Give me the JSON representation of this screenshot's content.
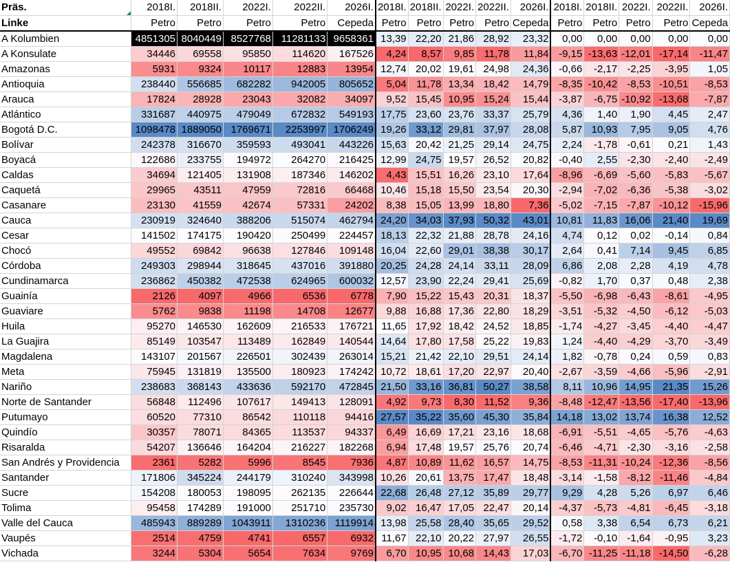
{
  "sheet": {
    "corner_label": "Präs.",
    "row2_label": "Linke",
    "elections": [
      "2018I.",
      "2018II.",
      "2022I.",
      "2022II.",
      "2026I."
    ],
    "candidates": [
      "Petro",
      "Petro",
      "Petro",
      "Petro",
      "Cepeda"
    ],
    "colors": {
      "red": "#f8696b",
      "white": "#fcfcff",
      "blue": "#5a8ac6"
    },
    "rows": [
      {
        "name": "A Kolumbien",
        "abs": [
          "4851305",
          "8040449",
          "8527768",
          "11281133",
          "9658361"
        ],
        "pct": [
          "13,39",
          "22,20",
          "21,86",
          "28,92",
          "23,32"
        ],
        "diff": [
          "0,00",
          "0,00",
          "0,00",
          "0,00",
          "0,00"
        ],
        "total": true
      },
      {
        "name": "A Konsulate",
        "abs": [
          "34446",
          "69558",
          "95850",
          "114620",
          "167526"
        ],
        "pct": [
          "4,24",
          "8,57",
          "9,85",
          "11,78",
          "11,84"
        ],
        "diff": [
          "-9,15",
          "-13,63",
          "-12,01",
          "-17,14",
          "-11,47"
        ]
      },
      {
        "name": "Amazonas",
        "abs": [
          "5931",
          "9324",
          "10117",
          "12883",
          "13954"
        ],
        "pct": [
          "12,74",
          "20,02",
          "19,61",
          "24,98",
          "24,36"
        ],
        "diff": [
          "-0,66",
          "-2,17",
          "-2,25",
          "-3,95",
          "1,05"
        ]
      },
      {
        "name": "Antioquia",
        "abs": [
          "238440",
          "556685",
          "682282",
          "942005",
          "805652"
        ],
        "pct": [
          "5,04",
          "11,78",
          "13,34",
          "18,42",
          "14,79"
        ],
        "diff": [
          "-8,35",
          "-10,42",
          "-8,53",
          "-10,51",
          "-8,53"
        ]
      },
      {
        "name": "Arauca",
        "abs": [
          "17824",
          "28928",
          "23043",
          "32082",
          "34097"
        ],
        "pct": [
          "9,52",
          "15,45",
          "10,95",
          "15,24",
          "15,44"
        ],
        "diff": [
          "-3,87",
          "-6,75",
          "-10,92",
          "-13,68",
          "-7,87"
        ]
      },
      {
        "name": "Atlántico",
        "abs": [
          "331687",
          "440975",
          "479049",
          "672832",
          "549193"
        ],
        "pct": [
          "17,75",
          "23,60",
          "23,76",
          "33,37",
          "25,79"
        ],
        "diff": [
          "4,36",
          "1,40",
          "1,90",
          "4,45",
          "2,47"
        ]
      },
      {
        "name": "Bogotá D.C.",
        "abs": [
          "1098478",
          "1889050",
          "1769671",
          "2253997",
          "1706249"
        ],
        "pct": [
          "19,26",
          "33,12",
          "29,81",
          "37,97",
          "28,08"
        ],
        "diff": [
          "5,87",
          "10,93",
          "7,95",
          "9,05",
          "4,76"
        ]
      },
      {
        "name": "Bolívar",
        "abs": [
          "242378",
          "316670",
          "359593",
          "493041",
          "443226"
        ],
        "pct": [
          "15,63",
          "20,42",
          "21,25",
          "29,14",
          "24,75"
        ],
        "diff": [
          "2,24",
          "-1,78",
          "-0,61",
          "0,21",
          "1,43"
        ]
      },
      {
        "name": "Boyacá",
        "abs": [
          "122686",
          "233755",
          "194972",
          "264270",
          "216425"
        ],
        "pct": [
          "12,99",
          "24,75",
          "19,57",
          "26,52",
          "20,82"
        ],
        "diff": [
          "-0,40",
          "2,55",
          "-2,30",
          "-2,40",
          "-2,49"
        ]
      },
      {
        "name": "Caldas",
        "abs": [
          "34694",
          "121405",
          "131908",
          "187346",
          "146202"
        ],
        "pct": [
          "4,43",
          "15,51",
          "16,26",
          "23,10",
          "17,64"
        ],
        "diff": [
          "-8,96",
          "-6,69",
          "-5,60",
          "-5,83",
          "-5,67"
        ]
      },
      {
        "name": "Caquetá",
        "abs": [
          "29965",
          "43511",
          "47959",
          "72816",
          "66468"
        ],
        "pct": [
          "10,46",
          "15,18",
          "15,50",
          "23,54",
          "20,30"
        ],
        "diff": [
          "-2,94",
          "-7,02",
          "-6,36",
          "-5,38",
          "-3,02"
        ]
      },
      {
        "name": "Casanare",
        "abs": [
          "23130",
          "41559",
          "42674",
          "57331",
          "24202"
        ],
        "pct": [
          "8,38",
          "15,05",
          "13,99",
          "18,80",
          "7,36"
        ],
        "diff": [
          "-5,02",
          "-7,15",
          "-7,87",
          "-10,12",
          "-15,96"
        ]
      },
      {
        "name": "Cauca",
        "abs": [
          "230919",
          "324640",
          "388206",
          "515074",
          "462794"
        ],
        "pct": [
          "24,20",
          "34,03",
          "37,93",
          "50,32",
          "43,01"
        ],
        "diff": [
          "10,81",
          "11,83",
          "16,06",
          "21,40",
          "19,69"
        ]
      },
      {
        "name": "Cesar",
        "abs": [
          "141502",
          "174175",
          "190420",
          "250499",
          "224457"
        ],
        "pct": [
          "18,13",
          "22,32",
          "21,88",
          "28,78",
          "24,16"
        ],
        "diff": [
          "4,74",
          "0,12",
          "0,02",
          "-0,14",
          "0,84"
        ]
      },
      {
        "name": "Chocó",
        "abs": [
          "49552",
          "69842",
          "96638",
          "127846",
          "109148"
        ],
        "pct": [
          "16,04",
          "22,60",
          "29,01",
          "38,38",
          "30,17"
        ],
        "diff": [
          "2,64",
          "0,41",
          "7,14",
          "9,45",
          "6,85"
        ]
      },
      {
        "name": "Córdoba",
        "abs": [
          "249303",
          "298944",
          "318645",
          "437016",
          "391880"
        ],
        "pct": [
          "20,25",
          "24,28",
          "24,14",
          "33,11",
          "28,09"
        ],
        "diff": [
          "6,86",
          "2,08",
          "2,28",
          "4,19",
          "4,78"
        ]
      },
      {
        "name": "Cundinamarca",
        "abs": [
          "236862",
          "450382",
          "472538",
          "624965",
          "600032"
        ],
        "pct": [
          "12,57",
          "23,90",
          "22,24",
          "29,41",
          "25,69"
        ],
        "diff": [
          "-0,82",
          "1,70",
          "0,37",
          "0,48",
          "2,38"
        ]
      },
      {
        "name": "Guainía",
        "abs": [
          "2126",
          "4097",
          "4966",
          "6536",
          "6778"
        ],
        "pct": [
          "7,90",
          "15,22",
          "15,43",
          "20,31",
          "18,37"
        ],
        "diff": [
          "-5,50",
          "-6,98",
          "-6,43",
          "-8,61",
          "-4,95"
        ]
      },
      {
        "name": "Guaviare",
        "abs": [
          "5762",
          "9838",
          "11198",
          "14708",
          "12677"
        ],
        "pct": [
          "9,88",
          "16,88",
          "17,36",
          "22,80",
          "18,29"
        ],
        "diff": [
          "-3,51",
          "-5,32",
          "-4,50",
          "-6,12",
          "-5,03"
        ]
      },
      {
        "name": "Huila",
        "abs": [
          "95270",
          "146530",
          "162609",
          "216533",
          "176721"
        ],
        "pct": [
          "11,65",
          "17,92",
          "18,42",
          "24,52",
          "18,85"
        ],
        "diff": [
          "-1,74",
          "-4,27",
          "-3,45",
          "-4,40",
          "-4,47"
        ]
      },
      {
        "name": "La Guajira",
        "abs": [
          "85149",
          "103547",
          "113489",
          "162849",
          "140544"
        ],
        "pct": [
          "14,64",
          "17,80",
          "17,58",
          "25,22",
          "19,83"
        ],
        "diff": [
          "1,24",
          "-4,40",
          "-4,29",
          "-3,70",
          "-3,49"
        ]
      },
      {
        "name": "Magdalena",
        "abs": [
          "143107",
          "201567",
          "226501",
          "302439",
          "263014"
        ],
        "pct": [
          "15,21",
          "21,42",
          "22,10",
          "29,51",
          "24,14"
        ],
        "diff": [
          "1,82",
          "-0,78",
          "0,24",
          "0,59",
          "0,83"
        ]
      },
      {
        "name": "Meta",
        "abs": [
          "75945",
          "131819",
          "135500",
          "180923",
          "174242"
        ],
        "pct": [
          "10,72",
          "18,61",
          "17,20",
          "22,97",
          "20,40"
        ],
        "diff": [
          "-2,67",
          "-3,59",
          "-4,66",
          "-5,96",
          "-2,91"
        ]
      },
      {
        "name": "Nariño",
        "abs": [
          "238683",
          "368143",
          "433636",
          "592170",
          "472845"
        ],
        "pct": [
          "21,50",
          "33,16",
          "36,81",
          "50,27",
          "38,58"
        ],
        "diff": [
          "8,11",
          "10,96",
          "14,95",
          "21,35",
          "15,26"
        ]
      },
      {
        "name": "Norte de Santander",
        "abs": [
          "56848",
          "112496",
          "107617",
          "149413",
          "128091"
        ],
        "pct": [
          "4,92",
          "9,73",
          "8,30",
          "11,52",
          "9,36"
        ],
        "diff": [
          "-8,48",
          "-12,47",
          "-13,56",
          "-17,40",
          "-13,96"
        ]
      },
      {
        "name": "Putumayo",
        "abs": [
          "60520",
          "77310",
          "86542",
          "110118",
          "94416"
        ],
        "pct": [
          "27,57",
          "35,22",
          "35,60",
          "45,30",
          "35,84"
        ],
        "diff": [
          "14,18",
          "13,02",
          "13,74",
          "16,38",
          "12,52"
        ]
      },
      {
        "name": "Quindío",
        "abs": [
          "30357",
          "78071",
          "84365",
          "113537",
          "94337"
        ],
        "pct": [
          "6,49",
          "16,69",
          "17,21",
          "23,16",
          "18,68"
        ],
        "diff": [
          "-6,91",
          "-5,51",
          "-4,65",
          "-5,76",
          "-4,63"
        ]
      },
      {
        "name": "Risaralda",
        "abs": [
          "54207",
          "136646",
          "164204",
          "216227",
          "182268"
        ],
        "pct": [
          "6,94",
          "17,48",
          "19,57",
          "25,76",
          "20,74"
        ],
        "diff": [
          "-6,46",
          "-4,71",
          "-2,30",
          "-3,16",
          "-2,58"
        ]
      },
      {
        "name": "San Andrés y Providencia",
        "abs": [
          "2361",
          "5282",
          "5996",
          "8545",
          "7936"
        ],
        "pct": [
          "4,87",
          "10,89",
          "11,62",
          "16,57",
          "14,75"
        ],
        "diff": [
          "-8,53",
          "-11,31",
          "-10,24",
          "-12,36",
          "-8,56"
        ]
      },
      {
        "name": "Santander",
        "abs": [
          "171806",
          "345224",
          "244179",
          "310240",
          "343998"
        ],
        "pct": [
          "10,26",
          "20,61",
          "13,75",
          "17,47",
          "18,48"
        ],
        "diff": [
          "-3,14",
          "-1,58",
          "-8,12",
          "-11,46",
          "-4,84"
        ]
      },
      {
        "name": "Sucre",
        "abs": [
          "154208",
          "180053",
          "198095",
          "262135",
          "226644"
        ],
        "pct": [
          "22,68",
          "26,48",
          "27,12",
          "35,89",
          "29,77"
        ],
        "diff": [
          "9,29",
          "4,28",
          "5,26",
          "6,97",
          "6,46"
        ]
      },
      {
        "name": "Tolima",
        "abs": [
          "95458",
          "174289",
          "191000",
          "251710",
          "235730"
        ],
        "pct": [
          "9,02",
          "16,47",
          "17,05",
          "22,47",
          "20,14"
        ],
        "diff": [
          "-4,37",
          "-5,73",
          "-4,81",
          "-6,45",
          "-3,18"
        ]
      },
      {
        "name": "Valle del Cauca",
        "abs": [
          "485943",
          "889289",
          "1043911",
          "1310236",
          "1119914"
        ],
        "pct": [
          "13,98",
          "25,58",
          "28,40",
          "35,65",
          "29,52"
        ],
        "diff": [
          "0,58",
          "3,38",
          "6,54",
          "6,73",
          "6,21"
        ]
      },
      {
        "name": "Vaupés",
        "abs": [
          "2514",
          "4759",
          "4741",
          "6557",
          "6932"
        ],
        "pct": [
          "11,67",
          "22,10",
          "20,22",
          "27,97",
          "26,55"
        ],
        "diff": [
          "-1,72",
          "-0,10",
          "-1,64",
          "-0,95",
          "3,23"
        ]
      },
      {
        "name": "Vichada",
        "abs": [
          "3244",
          "5304",
          "5654",
          "7634",
          "9769"
        ],
        "pct": [
          "6,70",
          "10,95",
          "10,68",
          "14,43",
          "17,03"
        ],
        "diff": [
          "-6,70",
          "-11,25",
          "-11,18",
          "-14,50",
          "-6,28"
        ]
      }
    ]
  }
}
